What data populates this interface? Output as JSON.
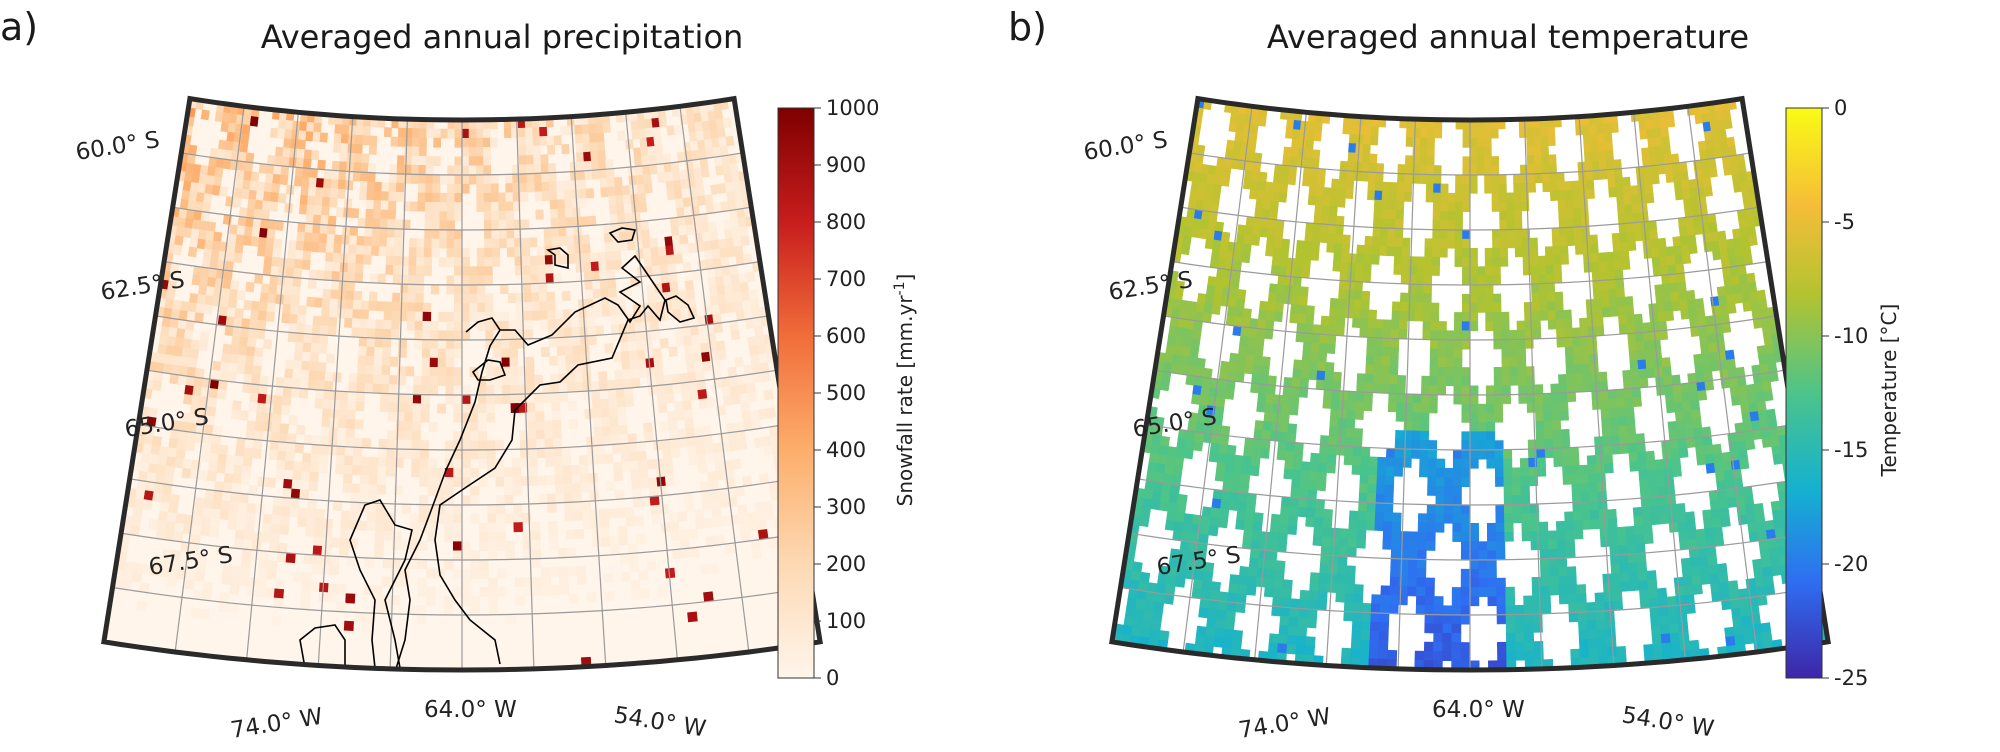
{
  "figure": {
    "panels": [
      {
        "id": "a",
        "letter": "a)",
        "title": "Averaged annual precipitation",
        "variable": "precipitation",
        "lat_labels": [
          "60.0° S",
          "62.5° S",
          "65.0° S",
          "67.5° S"
        ],
        "lon_labels": [
          "74.0° W",
          "64.0° W",
          "54.0° W"
        ],
        "colorbar": {
          "label": "Snowfall rate [mm.yr-1]",
          "label_main": "Snowfall rate [mm.yr",
          "label_sup": "-1",
          "label_end": "]",
          "ticks": [
            "1000",
            "900",
            "800",
            "700",
            "600",
            "500",
            "400",
            "300",
            "200",
            "100",
            "0"
          ],
          "range": [
            0,
            1000
          ],
          "colors": [
            "#fff5eb",
            "#fdd9b4",
            "#fdae6b",
            "#f16d3a",
            "#c81d1d",
            "#7f0000"
          ]
        }
      },
      {
        "id": "b",
        "letter": "b)",
        "title": "Averaged annual temperature",
        "variable": "temperature",
        "lat_labels": [
          "60.0° S",
          "62.5° S",
          "65.0° S",
          "67.5° S"
        ],
        "lon_labels": [
          "74.0° W",
          "64.0° W",
          "54.0° W"
        ],
        "colorbar": {
          "label": "Temperature [°C]",
          "ticks": [
            "0",
            "-5",
            "-10",
            "-15",
            "-20",
            "-25"
          ],
          "range": [
            -25,
            0
          ],
          "colors": [
            "#3e26a8",
            "#2f6ef2",
            "#14b1d0",
            "#4cc48a",
            "#b2c330",
            "#f5bd38",
            "#f9fb15"
          ]
        }
      }
    ]
  }
}
